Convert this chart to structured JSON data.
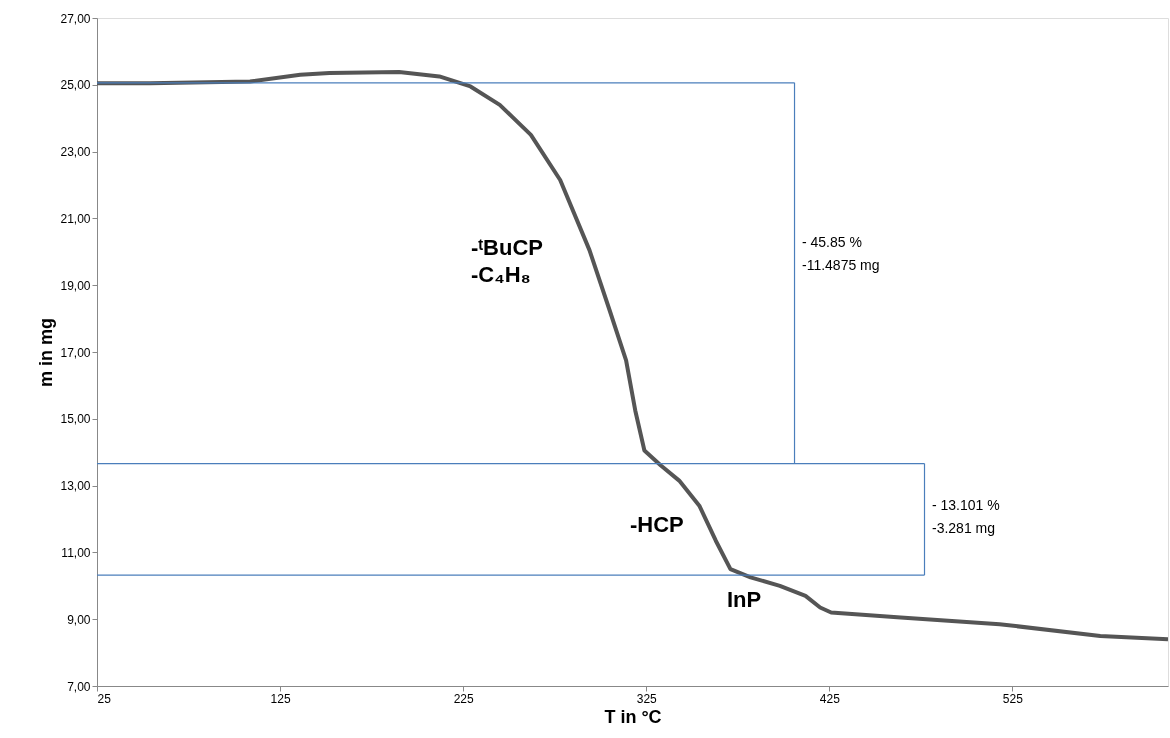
{
  "chart_data": {
    "type": "line",
    "xlabel": "T in °C",
    "ylabel": "m in mg",
    "xlim": [
      25,
      610
    ],
    "xticks": [
      25,
      125,
      225,
      325,
      425,
      525
    ],
    "ylim": [
      7,
      27
    ],
    "yticks": [
      {
        "value": 7,
        "label": "7,00"
      },
      {
        "value": 9,
        "label": "9,00"
      },
      {
        "value": 11,
        "label": "11,00"
      },
      {
        "value": 13,
        "label": "13,00"
      },
      {
        "value": 15,
        "label": "15,00"
      },
      {
        "value": 17,
        "label": "17,00"
      },
      {
        "value": 19,
        "label": "19,00"
      },
      {
        "value": 21,
        "label": "21,00"
      },
      {
        "value": 23,
        "label": "23,00"
      },
      {
        "value": 25,
        "label": "25,00"
      },
      {
        "value": 27,
        "label": "27,00"
      }
    ],
    "grid": false,
    "line_style": "solid",
    "series": [
      {
        "color": "#555555",
        "x": [
          25,
          54,
          108.6,
          136,
          152,
          190,
          212,
          229,
          245,
          262,
          278,
          294,
          305,
          314,
          319,
          324,
          333,
          343,
          354,
          363,
          371,
          382,
          398,
          412,
          420,
          426,
          464,
          518,
          573,
          610
        ],
        "values": [
          25.05,
          25.05,
          25.1,
          25.3,
          25.35,
          25.38,
          25.25,
          24.95,
          24.4,
          23.5,
          22.15,
          20.05,
          18.25,
          16.75,
          15.25,
          14.05,
          13.6,
          13.15,
          12.4,
          11.35,
          10.5,
          10.25,
          10.0,
          9.7,
          9.35,
          9.2,
          9.05,
          8.85,
          8.5,
          8.4
        ]
      },
      {
        "color": "#4a7ebb",
        "x": [
          25,
          406
        ],
        "values": [
          25.06,
          25.06
        ]
      },
      {
        "color": "#4a7ebb",
        "x": [
          25,
          477
        ],
        "values": [
          13.66,
          13.66
        ]
      },
      {
        "color": "#4a7ebb",
        "x": [
          25,
          477
        ],
        "values": [
          10.32,
          10.32
        ]
      },
      {
        "color": "#4a7ebb",
        "x": [
          406,
          406
        ],
        "values": [
          25.06,
          13.66
        ]
      },
      {
        "color": "#4a7ebb",
        "x": [
          477,
          477
        ],
        "values": [
          13.66,
          10.32
        ]
      }
    ],
    "annotations": [
      "-ᵗBuCP",
      "-C₄H₈",
      "-HCP",
      "InP",
      "- 45.85 %",
      "-11.4875 mg",
      "- 13.101 %",
      "-3.281 mg"
    ]
  }
}
